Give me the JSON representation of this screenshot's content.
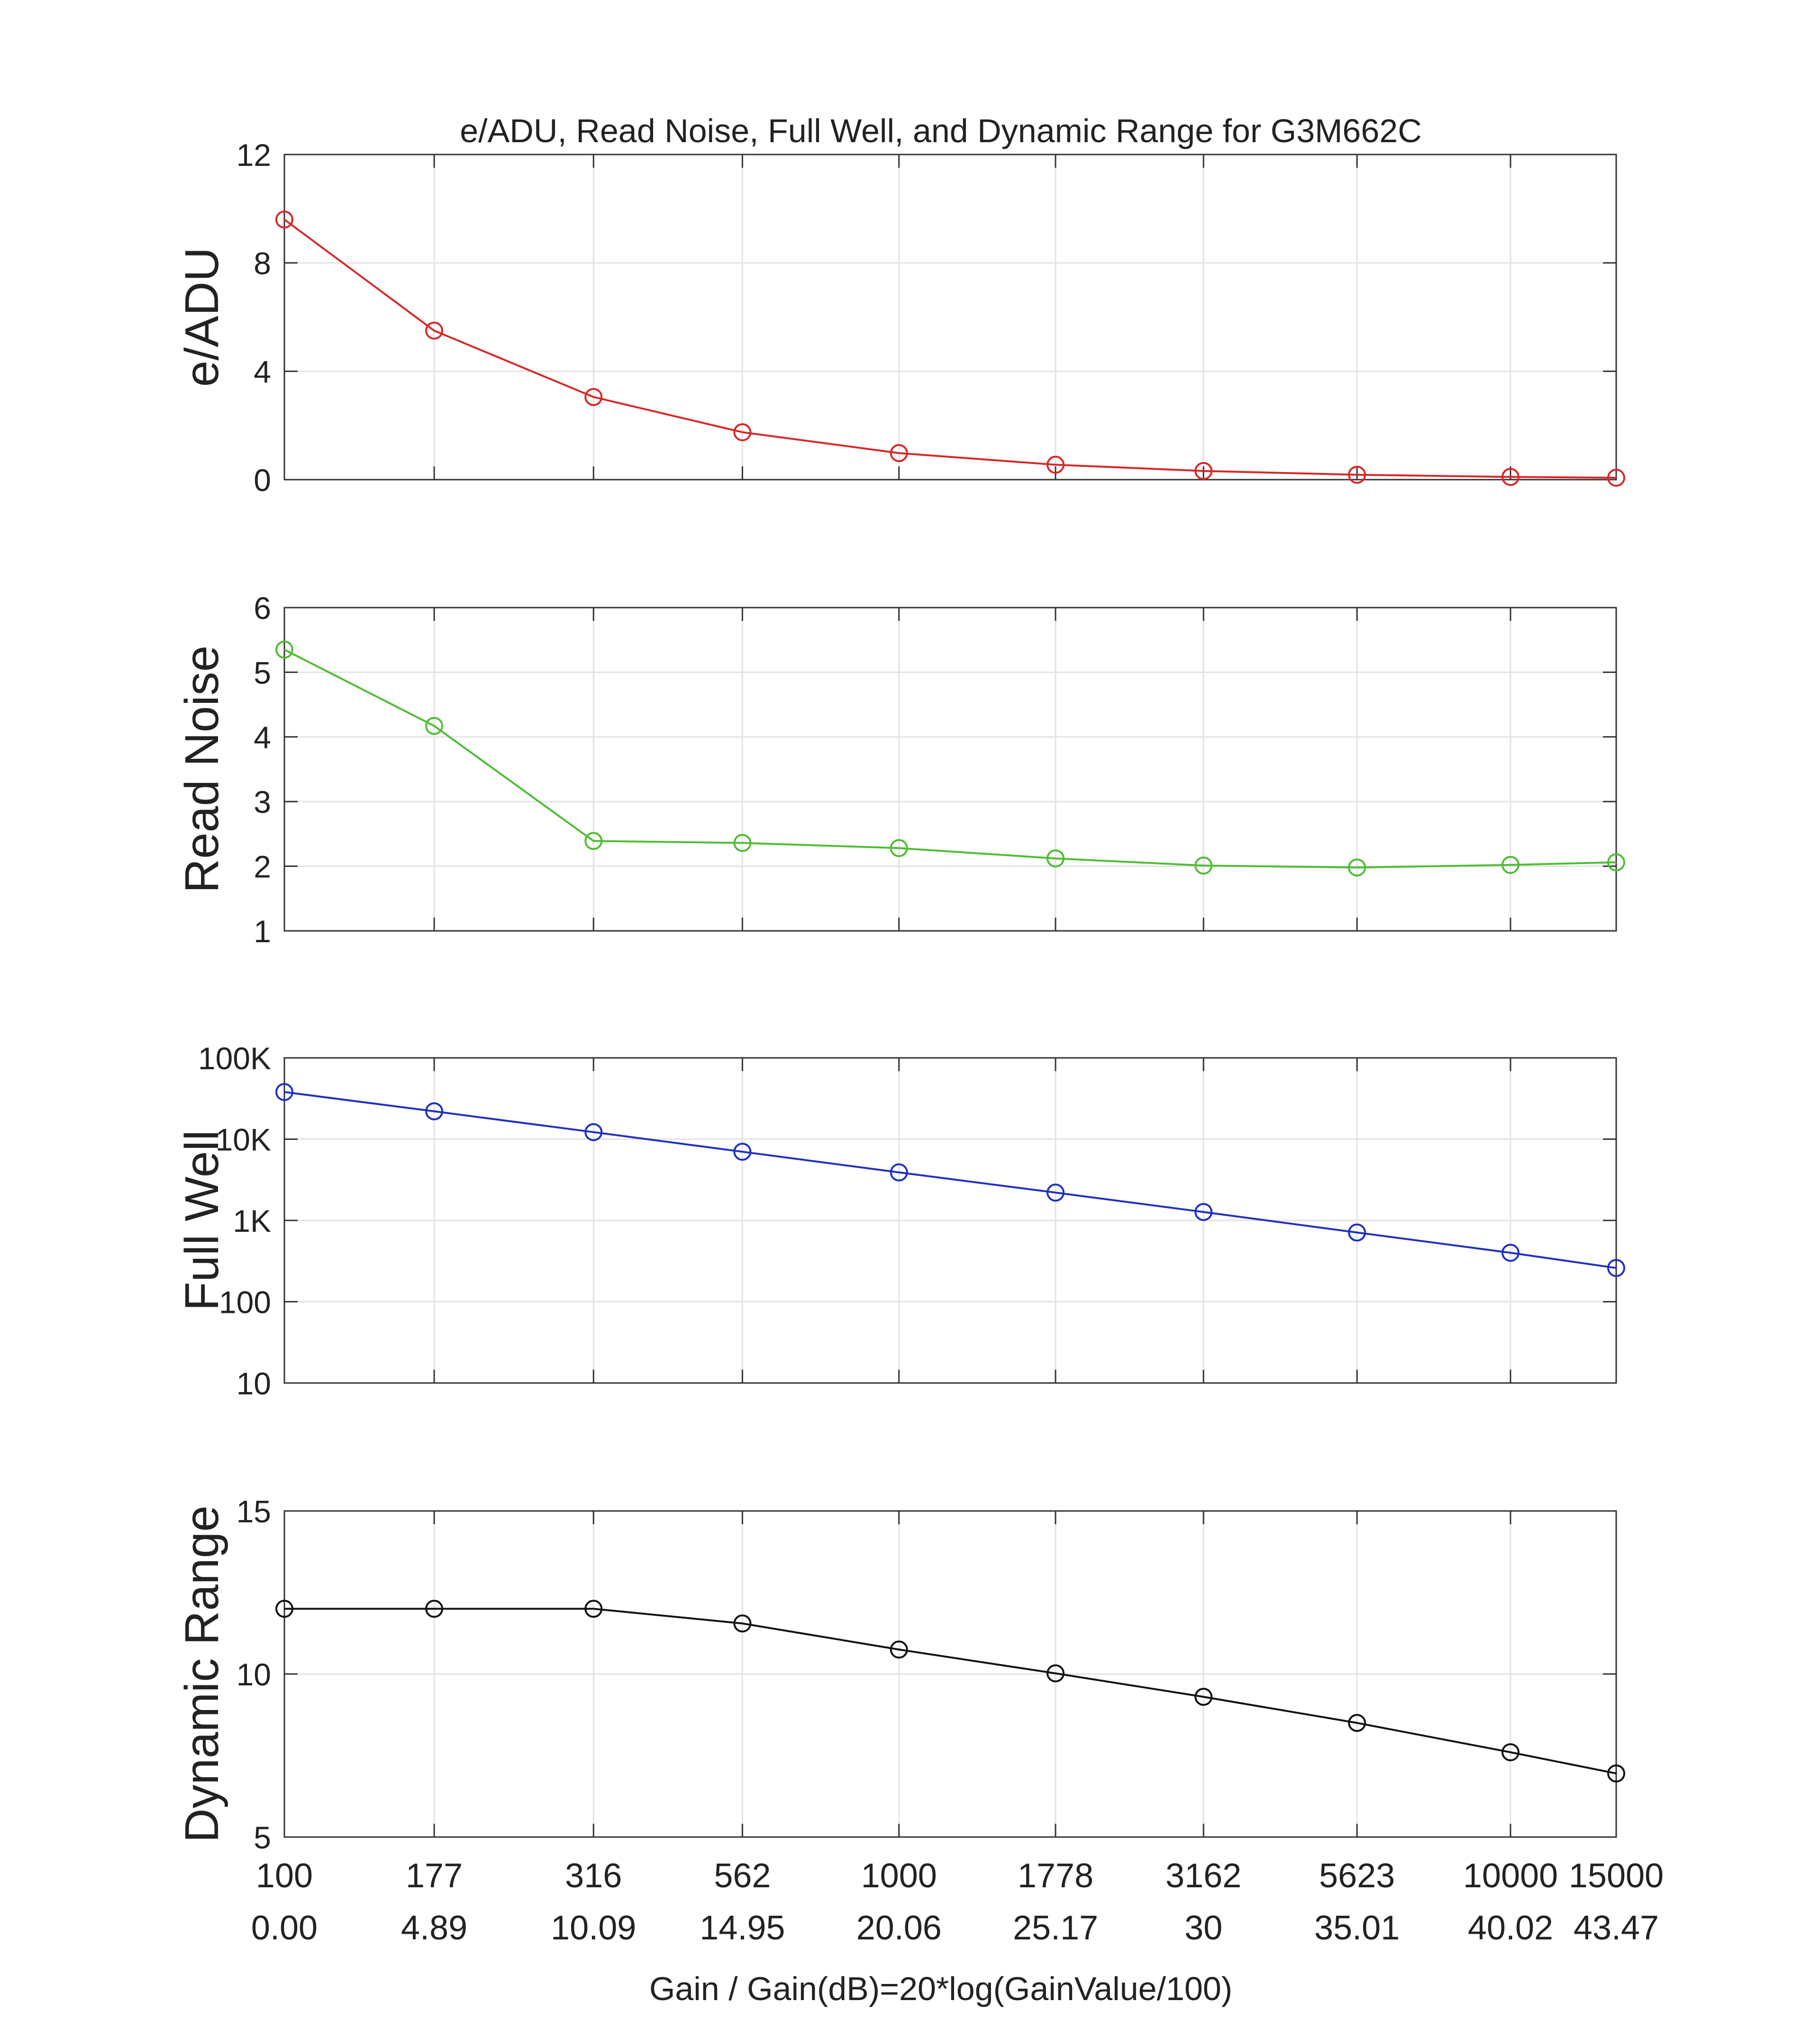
{
  "chart_data": {
    "type": "line",
    "title": "e/ADU, Read Noise, Full Well, and Dynamic Range for G3M662C",
    "xlabel": "Gain / Gain(dB)=20*log(GainValue/100)",
    "categories": [
      "100",
      "177",
      "316",
      "562",
      "1000",
      "1778",
      "3162",
      "5623",
      "10000",
      "15000"
    ],
    "categories_db": [
      "0.00",
      "4.89",
      "10.09",
      "14.95",
      "20.06",
      "25.17",
      "30",
      "35.01",
      "40.02",
      "43.47"
    ],
    "x": [
      0.0,
      4.89,
      10.09,
      14.95,
      20.06,
      25.17,
      30,
      35.01,
      40.02,
      43.47
    ],
    "grid": true,
    "panels": [
      {
        "ylabel": "e/ADU",
        "color": "#d62728",
        "scale": "linear",
        "ylim": [
          0,
          12
        ],
        "yticks": [
          0,
          4,
          8,
          12
        ],
        "ytick_labels": [
          "0",
          "4",
          "8",
          "12"
        ],
        "values": [
          9.6,
          5.5,
          3.05,
          1.75,
          0.98,
          0.55,
          0.32,
          0.18,
          0.1,
          0.07
        ]
      },
      {
        "ylabel": "Read Noise",
        "color": "#4dbd33",
        "scale": "linear",
        "ylim": [
          1,
          6
        ],
        "yticks": [
          1,
          2,
          3,
          4,
          5,
          6
        ],
        "ytick_labels": [
          "1",
          "2",
          "3",
          "4",
          "5",
          "6"
        ],
        "values": [
          5.35,
          4.17,
          2.39,
          2.36,
          2.28,
          2.12,
          2.01,
          1.98,
          2.02,
          2.06
        ]
      },
      {
        "ylabel": "Full Well",
        "color": "#1f2fbf",
        "scale": "log",
        "ylim": [
          10,
          100000
        ],
        "yticks": [
          10,
          100,
          1000,
          10000,
          100000
        ],
        "ytick_labels": [
          "10",
          "100",
          "1K",
          "10K",
          "100K"
        ],
        "values": [
          38000,
          22000,
          12200,
          7000,
          3900,
          2200,
          1270,
          710,
          400,
          260
        ]
      },
      {
        "ylabel": "Dynamic Range",
        "color": "#111111",
        "scale": "linear",
        "ylim": [
          5,
          15
        ],
        "yticks": [
          5,
          10,
          15
        ],
        "ytick_labels": [
          "5",
          "10",
          "15"
        ],
        "values": [
          12.0,
          12.0,
          12.0,
          11.55,
          10.75,
          10.02,
          9.3,
          8.5,
          7.6,
          6.95
        ]
      }
    ]
  }
}
